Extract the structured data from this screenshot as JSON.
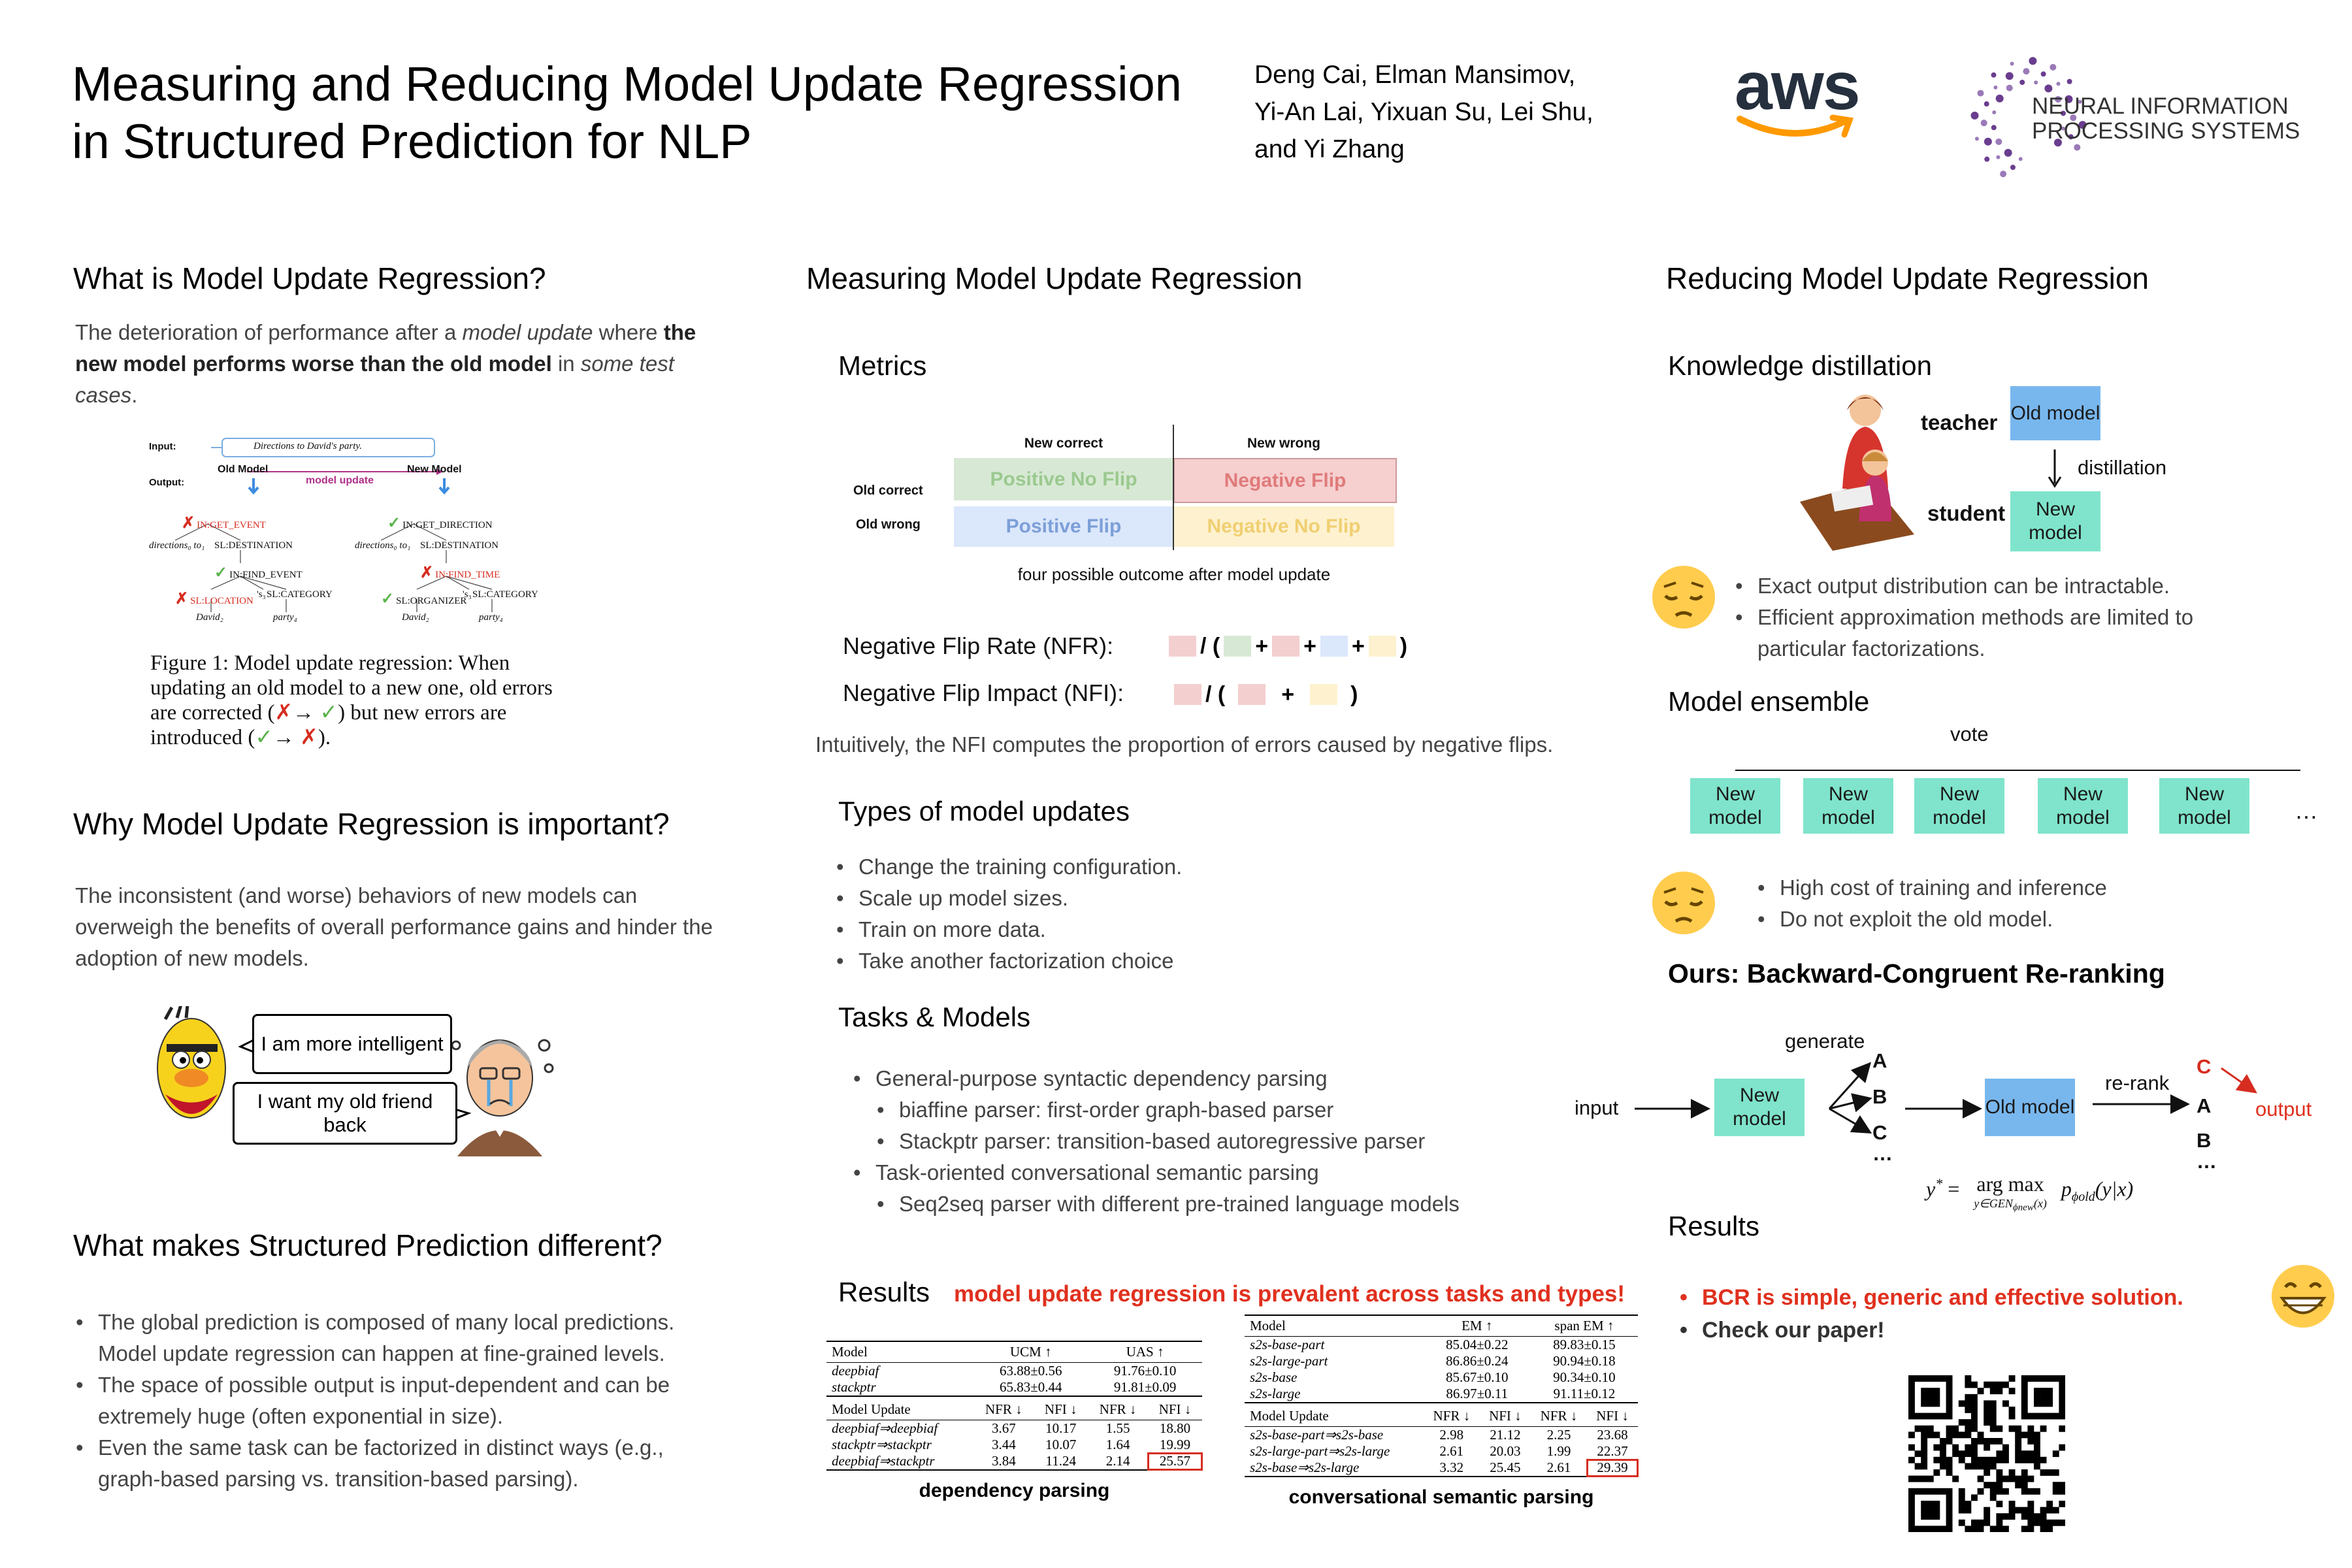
{
  "header": {
    "title": [
      "Measuring and Reducing Model Update Regression",
      "in Structured Prediction for NLP"
    ],
    "authors": [
      "Deng Cai, Elman Mansimov,",
      "Yi-An Lai, Yixuan Su, Lei Shu,",
      "and Yi Zhang"
    ],
    "aws_logo": "aws",
    "neurips_logo": [
      "NEURAL INFORMATION",
      "PROCESSING SYSTEMS"
    ]
  },
  "what_is": {
    "title": "What is Model Update Regression?",
    "body": [
      "The deterioration of performance after a ",
      "model update",
      " where ",
      "the new model performs worse than the old model",
      " in ",
      "some test cases",
      "."
    ],
    "figure": {
      "input_label": "Input:",
      "input": "Directions to David's party.",
      "output_label": "Output:",
      "old_model": "Old Model",
      "update": "model update",
      "new_model": "New Model",
      "old_tree": [
        {
          "mark": "✗",
          "label": "IN:GET_EVENT"
        },
        {
          "label": "directions₀ to₁"
        },
        {
          "label": "SL:DESTINATION"
        },
        {
          "mark": "✓",
          "label": "IN:FIND_EVENT"
        },
        {
          "mark": "✗",
          "label": "SL:LOCATION"
        },
        {
          "label": "'s₃"
        },
        {
          "label": "SL:CATEGORY"
        },
        {
          "label": "David₂"
        },
        {
          "label": "party₄"
        }
      ],
      "new_tree": [
        {
          "mark": "✓",
          "label": "IN:GET_DIRECTION"
        },
        {
          "label": "directions₀ to₁"
        },
        {
          "label": "SL:DESTINATION"
        },
        {
          "mark": "✗",
          "label": "IN:FIND_TIME"
        },
        {
          "mark": "✓",
          "label": "SL:ORGANIZER"
        },
        {
          "label": "'s₃"
        },
        {
          "label": "SL:CATEGORY"
        },
        {
          "label": "David₂"
        },
        {
          "label": "party₄"
        }
      ],
      "caption": [
        "Figure 1: Model update regression: When updating an old model to a new one, old errors are corrected (",
        "✗",
        "→ ",
        "✓",
        ") but new errors are introduced (",
        "✓",
        "→ ",
        "✗",
        ")."
      ]
    }
  },
  "why": {
    "title": "Why Model Update Regression is important?",
    "body": "The inconsistent (and worse) behaviors of new models can overweigh the benefits of overall performance gains and hinder the adoption of new models.",
    "bubble_new": "I am more intelligent",
    "bubble_user": "I want my old friend back"
  },
  "structured": {
    "title": "What makes Structured Prediction different?",
    "bullets": [
      "The global prediction is composed of many local predictions. Model update regression can happen at fine-grained levels.",
      "The space of possible output is input-dependent and can be extremely huge (often exponential in size).",
      "Even the same task can be factorized in distinct ways (e.g., graph-based parsing vs. transition-based parsing)."
    ]
  },
  "measuring": {
    "title": "Measuring Model Update Regression",
    "metrics": {
      "title": "Metrics",
      "col_headers": [
        "New correct",
        "New wrong"
      ],
      "row_headers": [
        "Old correct",
        "Old wrong"
      ],
      "cells": [
        [
          "Positive No Flip",
          "Negative Flip"
        ],
        [
          "Positive Flip",
          "Negative No Flip"
        ]
      ],
      "caption": "four possible outcome after model update",
      "nfr_label": "Negative Flip Rate (NFR):",
      "nfr_tokens": [
        "/ (",
        "+",
        "+",
        "+",
        ")"
      ],
      "nfi_label": "Negative Flip Impact (NFI):",
      "nfi_tokens": [
        "/ (",
        "+",
        ")"
      ],
      "note": "Intuitively, the NFI computes the proportion of errors caused by negative flips."
    },
    "types": {
      "title": "Types of model updates",
      "bullets": [
        "Change the training configuration.",
        "Scale up model sizes.",
        "Train on more data.",
        "Take another factorization choice"
      ]
    },
    "tasks": {
      "title": "Tasks & Models",
      "bullets": [
        {
          "text": "General-purpose syntactic dependency parsing",
          "sub": [
            "biaffine parser: first-order graph-based parser",
            "Stackptr parser: transition-based autoregressive parser"
          ]
        },
        {
          "text": "Task-oriented conversational semantic parsing",
          "sub": [
            "Seq2seq parser with different pre-trained language models"
          ]
        }
      ]
    },
    "results": {
      "title": "Results",
      "highlight": "model update regression is prevalent across tasks and types!",
      "dep_table": {
        "header": [
          "Model",
          "UCM ↑",
          "UAS ↑"
        ],
        "rows": [
          [
            "deepbiaf",
            "63.88±0.56",
            "91.76±0.10"
          ],
          [
            "stackptr",
            "65.83±0.44",
            "91.81±0.09"
          ]
        ],
        "update_header": [
          "Model Update",
          "NFR ↓",
          "NFI ↓",
          "NFR ↓",
          "NFI ↓"
        ],
        "update_rows": [
          [
            "deepbiaf⇒deepbiaf",
            "3.67",
            "10.17",
            "1.55",
            "18.80"
          ],
          [
            "stackptr⇒stackptr",
            "3.44",
            "10.07",
            "1.64",
            "19.99"
          ],
          [
            "deepbiaf⇒stackptr",
            "3.84",
            "11.24",
            "2.14",
            "25.57"
          ]
        ],
        "caption": "dependency parsing"
      },
      "sem_table": {
        "header": [
          "Model",
          "EM ↑",
          "span EM ↑"
        ],
        "rows": [
          [
            "s2s-base-part",
            "85.04±0.22",
            "89.83±0.15"
          ],
          [
            "s2s-large-part",
            "86.86±0.24",
            "90.94±0.18"
          ],
          [
            "s2s-base",
            "85.67±0.10",
            "90.34±0.10"
          ],
          [
            "s2s-large",
            "86.97±0.11",
            "91.11±0.12"
          ]
        ],
        "update_header": [
          "Model Update",
          "NFR ↓",
          "NFI ↓",
          "NFR ↓",
          "NFI ↓"
        ],
        "update_rows": [
          [
            "s2s-base-part⇒s2s-base",
            "2.98",
            "21.12",
            "2.25",
            "23.68"
          ],
          [
            "s2s-large-part⇒s2s-large",
            "2.61",
            "20.03",
            "1.99",
            "22.37"
          ],
          [
            "s2s-base⇒s2s-large",
            "3.32",
            "25.45",
            "2.61",
            "29.39"
          ]
        ],
        "caption": "conversational semantic parsing"
      }
    }
  },
  "reducing": {
    "title": "Reducing Model Update Regression",
    "distillation": {
      "title": "Knowledge distillation",
      "teacher": "teacher",
      "student": "student",
      "old_model": "Old model",
      "new_model": "New model",
      "arrow": "distillation",
      "bullets": [
        "Exact output distribution can be intractable.",
        "Efficient approximation methods are limited to particular factorizations."
      ]
    },
    "ensemble": {
      "title": "Model ensemble",
      "vote": "vote",
      "models": [
        "New model",
        "New model",
        "New model",
        "New model",
        "New model"
      ],
      "more": "…",
      "bullets": [
        "High cost  of training and inference",
        "Do not exploit the old model."
      ]
    },
    "bcr": {
      "title": "Ours: Backward-Congruent Re-ranking",
      "input": "input",
      "new_model": "New model",
      "generate": "generate",
      "candidates": [
        "A",
        "B",
        "C",
        "…"
      ],
      "old_model": "Old model",
      "rerank": "re-rank",
      "ranked": [
        "C",
        "A",
        "B",
        "…"
      ],
      "output": "output",
      "equation": {
        "lhs": [
          "y",
          "*",
          " ="
        ],
        "op": "arg max",
        "under": [
          "y∈GEN",
          "ϕnew",
          "(x)"
        ],
        "rhs": [
          "p",
          "ϕold",
          "(y|x)"
        ]
      }
    },
    "results": {
      "title": "Results",
      "bullets": [
        "BCR is simple, generic and effective solution.",
        "Check our paper!"
      ]
    }
  }
}
